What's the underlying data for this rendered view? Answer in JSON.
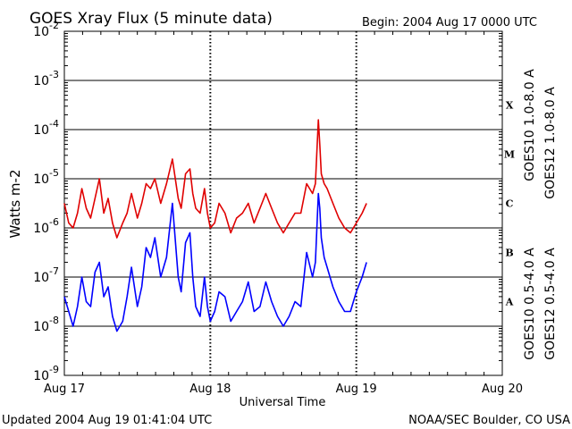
{
  "header": {
    "title": "GOES Xray Flux (5 minute data)",
    "begin": "Begin:  2004 Aug 17 0000 UTC"
  },
  "footer": {
    "updated": "Updated 2004 Aug 19 01:41:04 UTC",
    "credit": "NOAA/SEC Boulder, CO USA"
  },
  "chart_data": {
    "type": "line",
    "title": "GOES Xray Flux (5 minute data)",
    "xlabel": "Universal Time",
    "ylabel": "Watts m-2",
    "x_ticks": [
      "Aug 17",
      "Aug 18",
      "Aug 19",
      "Aug 20"
    ],
    "x_range_days": [
      0,
      3
    ],
    "y_scale": "log",
    "y_ticks": [
      {
        "mant": "10",
        "exp": "-2"
      },
      {
        "mant": "10",
        "exp": "-3"
      },
      {
        "mant": "10",
        "exp": "-4"
      },
      {
        "mant": "10",
        "exp": "-5"
      },
      {
        "mant": "10",
        "exp": "-6"
      },
      {
        "mant": "10",
        "exp": "-7"
      },
      {
        "mant": "10",
        "exp": "-8"
      },
      {
        "mant": "10",
        "exp": "-9"
      }
    ],
    "ylim_exp": [
      -9,
      -2
    ],
    "flare_classes": [
      "X",
      "M",
      "C",
      "B",
      "A"
    ],
    "legend_right": [
      {
        "text": "GOES10 1.0-8.0 A",
        "color": "#8a2be2"
      },
      {
        "text": "GOES12 1.0-8.0 A",
        "color": "#e00000"
      }
    ],
    "legend_right_low": [
      {
        "text": "GOES10 0.5-4.0 A",
        "color": "#ffa500"
      },
      {
        "text": "GOES12 0.5-4.0 A",
        "color": "#0000ff"
      }
    ],
    "series": [
      {
        "name": "GOES12 1.0-8.0 A",
        "color": "#e00000",
        "x": [
          0.0,
          0.03,
          0.06,
          0.09,
          0.12,
          0.15,
          0.18,
          0.21,
          0.24,
          0.27,
          0.3,
          0.33,
          0.36,
          0.4,
          0.43,
          0.46,
          0.5,
          0.53,
          0.56,
          0.59,
          0.62,
          0.66,
          0.7,
          0.74,
          0.78,
          0.8,
          0.83,
          0.86,
          0.88,
          0.9,
          0.93,
          0.96,
          0.98,
          1.0,
          1.03,
          1.06,
          1.1,
          1.14,
          1.18,
          1.22,
          1.26,
          1.3,
          1.34,
          1.38,
          1.42,
          1.46,
          1.5,
          1.54,
          1.58,
          1.62,
          1.66,
          1.7,
          1.72,
          1.74,
          1.75,
          1.76,
          1.78,
          1.8,
          1.84,
          1.88,
          1.92,
          1.96,
          2.0,
          2.04,
          2.07
        ],
        "exp": [
          -5.5,
          -5.9,
          -6.0,
          -5.7,
          -5.2,
          -5.6,
          -5.8,
          -5.4,
          -5.0,
          -5.7,
          -5.4,
          -5.9,
          -6.2,
          -5.9,
          -5.7,
          -5.3,
          -5.8,
          -5.5,
          -5.1,
          -5.2,
          -5.0,
          -5.5,
          -5.1,
          -4.6,
          -5.4,
          -5.6,
          -4.9,
          -4.8,
          -5.3,
          -5.6,
          -5.7,
          -5.2,
          -5.7,
          -6.0,
          -5.9,
          -5.5,
          -5.7,
          -6.1,
          -5.8,
          -5.7,
          -5.5,
          -5.9,
          -5.6,
          -5.3,
          -5.6,
          -5.9,
          -6.1,
          -5.9,
          -5.7,
          -5.7,
          -5.1,
          -5.3,
          -5.1,
          -3.8,
          -4.3,
          -4.9,
          -5.1,
          -5.2,
          -5.5,
          -5.8,
          -6.0,
          -6.1,
          -5.9,
          -5.7,
          -5.5
        ]
      },
      {
        "name": "GOES12 0.5-4.0 A",
        "color": "#0000ff",
        "x": [
          0.0,
          0.03,
          0.06,
          0.09,
          0.12,
          0.15,
          0.18,
          0.21,
          0.24,
          0.27,
          0.3,
          0.33,
          0.36,
          0.4,
          0.43,
          0.46,
          0.5,
          0.53,
          0.56,
          0.59,
          0.62,
          0.66,
          0.7,
          0.74,
          0.78,
          0.8,
          0.83,
          0.86,
          0.88,
          0.9,
          0.93,
          0.96,
          0.98,
          1.0,
          1.03,
          1.06,
          1.1,
          1.14,
          1.18,
          1.22,
          1.26,
          1.3,
          1.34,
          1.38,
          1.42,
          1.46,
          1.5,
          1.54,
          1.58,
          1.62,
          1.66,
          1.7,
          1.72,
          1.74,
          1.75,
          1.76,
          1.78,
          1.8,
          1.84,
          1.88,
          1.92,
          1.96,
          2.0,
          2.04,
          2.07
        ],
        "exp": [
          -7.4,
          -7.7,
          -8.0,
          -7.6,
          -7.0,
          -7.5,
          -7.6,
          -6.9,
          -6.7,
          -7.4,
          -7.2,
          -7.8,
          -8.1,
          -7.9,
          -7.4,
          -6.8,
          -7.6,
          -7.2,
          -6.4,
          -6.6,
          -6.2,
          -7.0,
          -6.6,
          -5.5,
          -7.0,
          -7.3,
          -6.3,
          -6.1,
          -7.0,
          -7.6,
          -7.8,
          -7.0,
          -7.6,
          -7.9,
          -7.7,
          -7.3,
          -7.4,
          -7.9,
          -7.7,
          -7.5,
          -7.1,
          -7.7,
          -7.6,
          -7.1,
          -7.5,
          -7.8,
          -8.0,
          -7.8,
          -7.5,
          -7.6,
          -6.5,
          -7.0,
          -6.7,
          -5.3,
          -5.6,
          -6.2,
          -6.6,
          -6.8,
          -7.2,
          -7.5,
          -7.7,
          -7.7,
          -7.3,
          -7.0,
          -6.7
        ]
      }
    ]
  }
}
